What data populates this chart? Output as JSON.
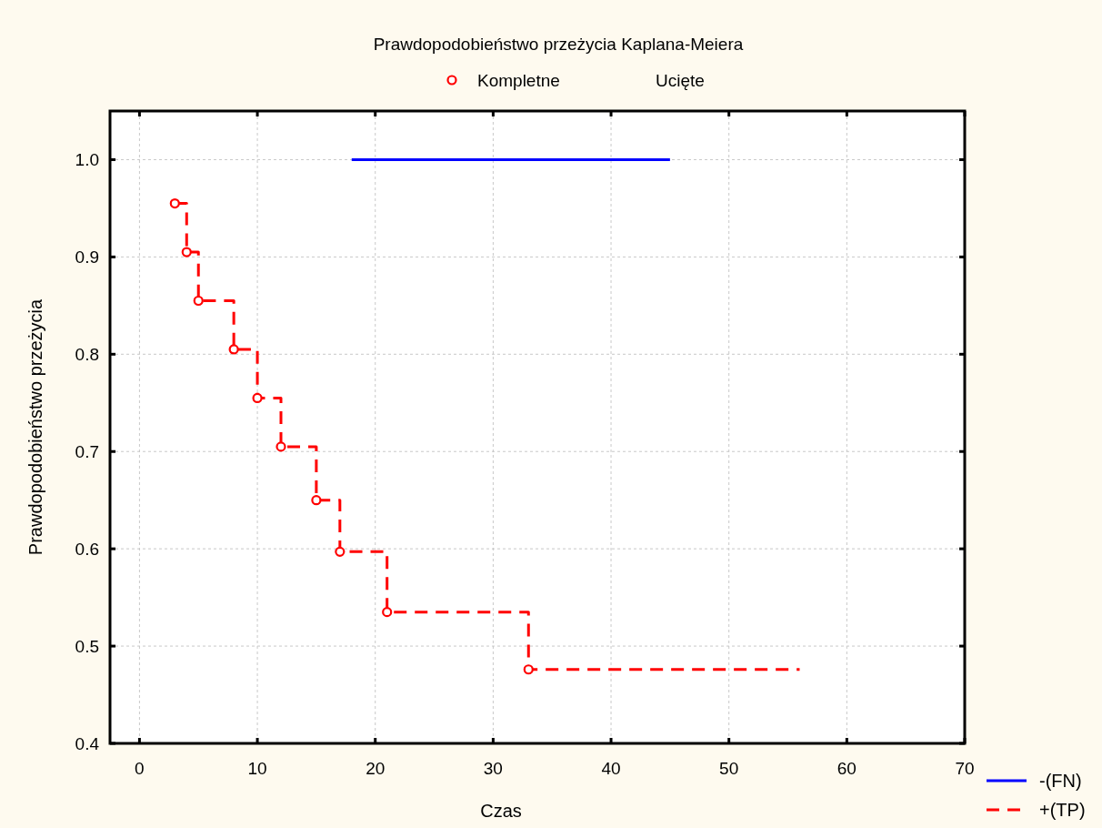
{
  "chart_data": {
    "type": "step",
    "title": "Prawdopodobieństwo przeżycia Kaplana-Meiera",
    "xlabel": "Czas",
    "ylabel": "Prawdopodobieństwo przeżycia",
    "xlim": [
      -2.5,
      70
    ],
    "xticks": [
      0,
      10,
      20,
      30,
      40,
      50,
      60,
      70
    ],
    "ylim": [
      0.4,
      1.05
    ],
    "yticks": [
      0.4,
      0.5,
      0.6,
      0.7,
      0.8,
      0.9,
      {
        "value": 1,
        "label": "1.0"
      }
    ],
    "grid": true,
    "legend": "bottom right",
    "series": [
      {
        "name": "-(FN)",
        "color": "#0000ff",
        "line_style": "solid",
        "marker": "none",
        "x": [
          18,
          45
        ],
        "values": [
          1.0,
          1.0
        ]
      },
      {
        "name": "+(TP)",
        "color": "#ff0000",
        "line_style": "dashed",
        "marker": "none",
        "x": [
          3,
          4,
          5,
          8,
          10,
          12,
          15,
          17,
          21,
          33,
          56
        ],
        "values": [
          0.955,
          0.905,
          0.855,
          0.805,
          0.755,
          0.705,
          0.65,
          0.597,
          0.535,
          0.476,
          0.476
        ]
      },
      {
        "name": "Kompletne",
        "type": "scatter",
        "color": "#ff0000",
        "marker": "circle",
        "x": [
          3,
          4,
          5,
          8,
          10,
          12,
          15,
          17,
          21,
          33
        ],
        "values": [
          0.955,
          0.905,
          0.855,
          0.805,
          0.755,
          0.705,
          0.65,
          0.597,
          0.535,
          0.476
        ]
      },
      {
        "name": "Ucięte",
        "type": "scatter",
        "marker": "none"
      }
    ]
  }
}
